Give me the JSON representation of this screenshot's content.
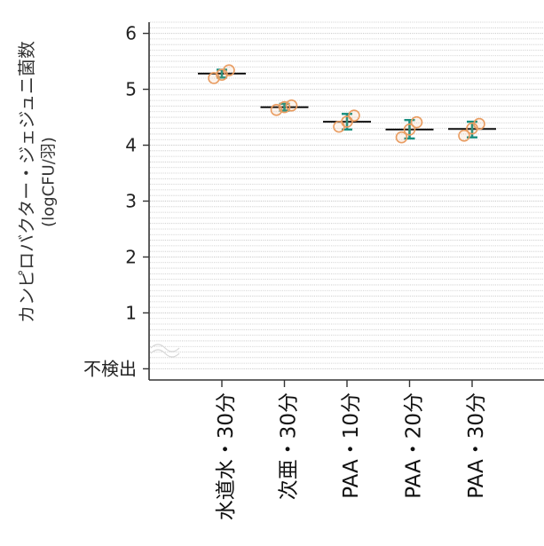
{
  "chart_data": {
    "type": "scatter",
    "title": "",
    "xlabel": "",
    "ylabel": [
      "カンピロバクター・ジェジュニ菌数",
      "(logCFU/羽)"
    ],
    "ylim": [
      -0.2,
      6.2
    ],
    "yticks": {
      "values": [
        0,
        1,
        2,
        3,
        4,
        5,
        6
      ],
      "labels": [
        "不検出",
        "1",
        "2",
        "3",
        "4",
        "5",
        "6"
      ]
    },
    "grid": true,
    "categories": [
      "水道水・30分",
      "次亜・30分",
      "PAA・10分",
      "PAA・20分",
      "PAA・30分"
    ],
    "points": [
      [
        5.2,
        5.26,
        5.34
      ],
      [
        4.63,
        4.68,
        4.71
      ],
      [
        4.33,
        4.42,
        4.53
      ],
      [
        4.14,
        4.28,
        4.41
      ],
      [
        4.17,
        4.3,
        4.38
      ]
    ],
    "center": [
      5.28,
      4.68,
      4.42,
      4.28,
      4.29
    ],
    "error_low": [
      5.21,
      4.62,
      4.28,
      4.12,
      4.14
    ],
    "error_high": [
      5.35,
      4.74,
      4.56,
      4.45,
      4.42
    ],
    "colors": {
      "points": "#e99d62",
      "error_bars": "#1a8f80",
      "center_line": "#111111",
      "grid": "#c9c9c9",
      "axis": "#333333"
    }
  }
}
